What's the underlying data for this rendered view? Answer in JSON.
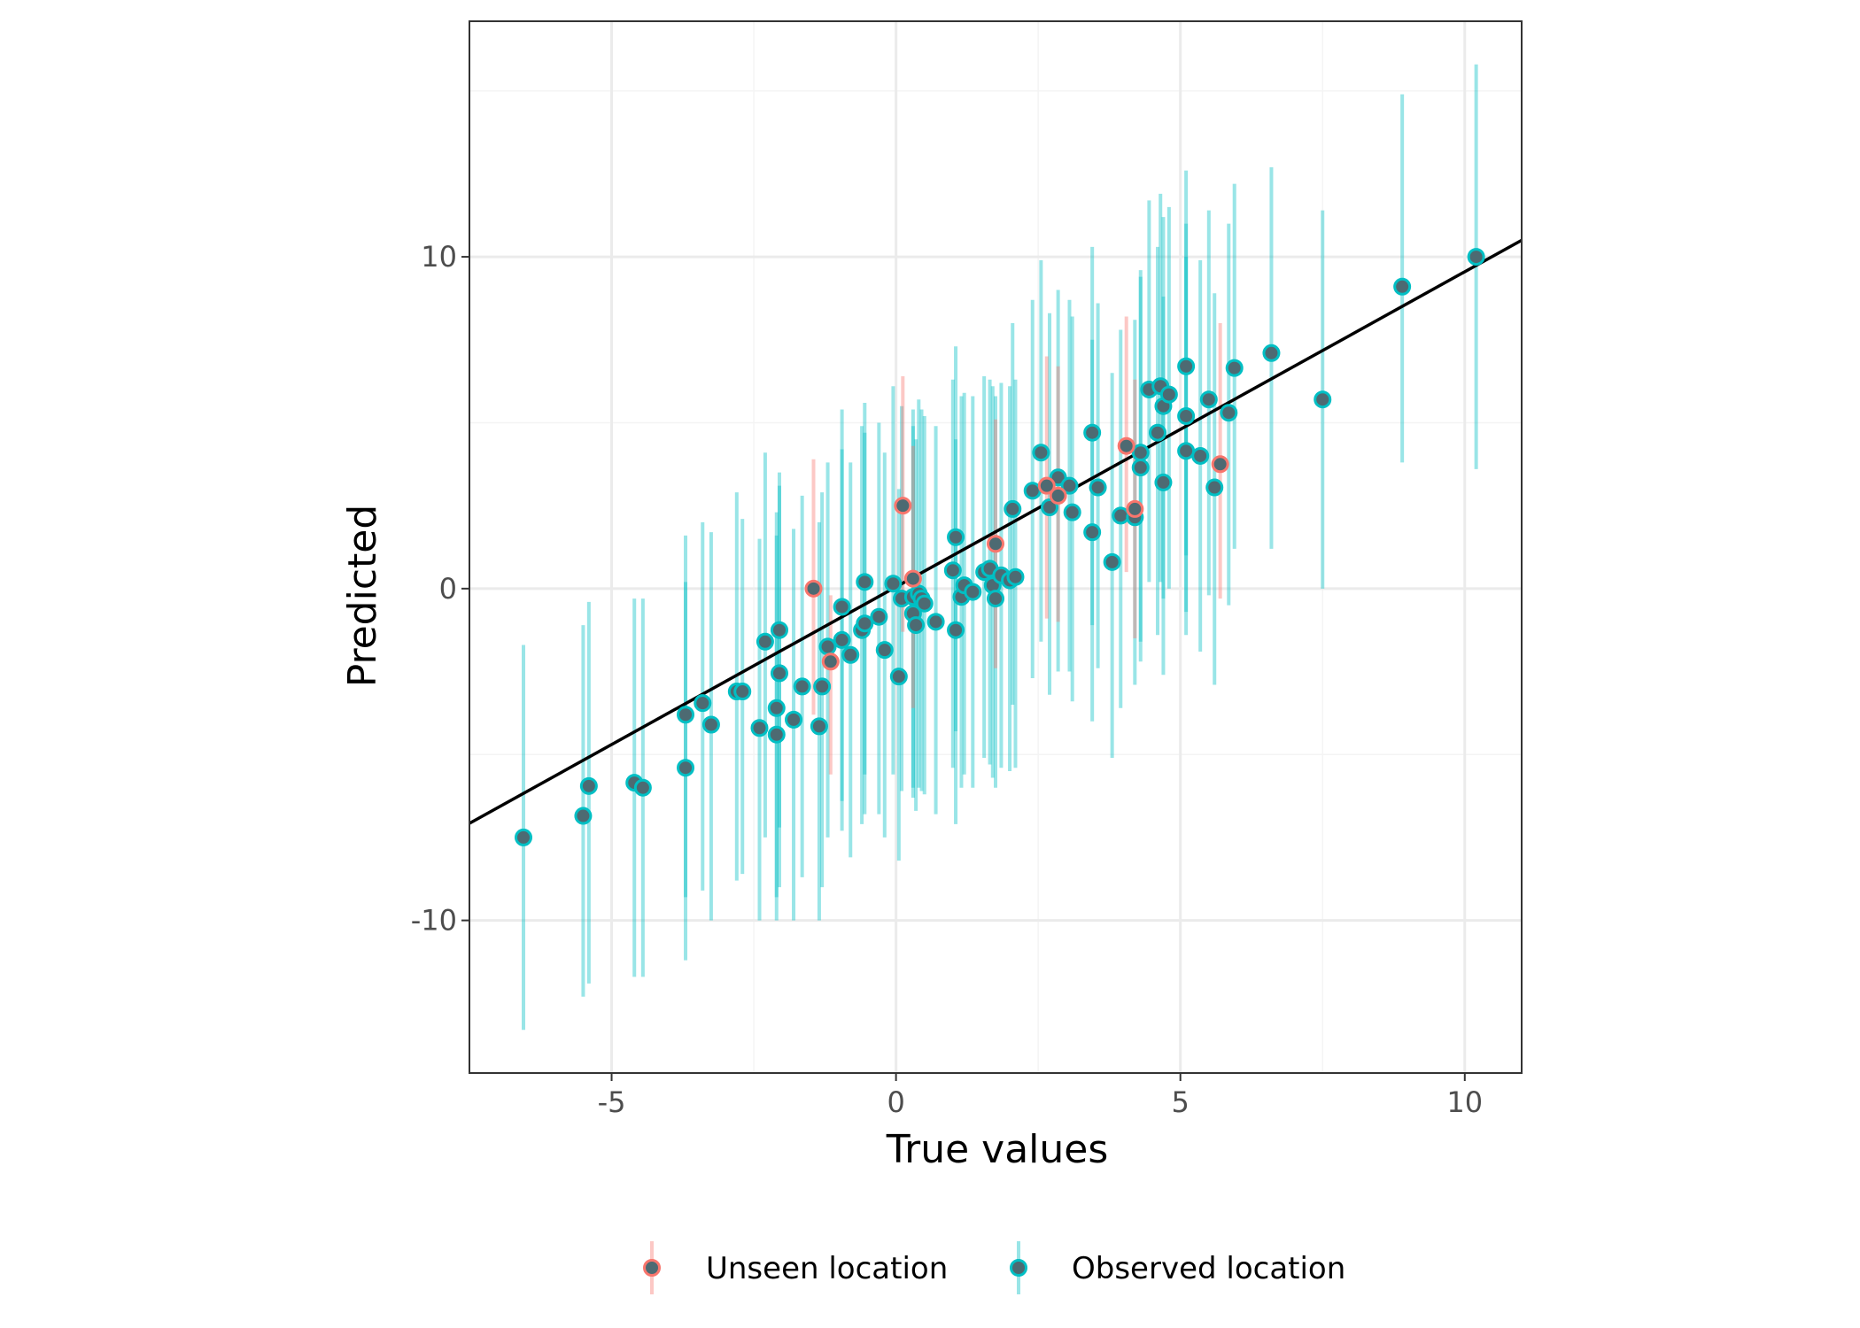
{
  "chart_data": {
    "type": "scatter",
    "title": "",
    "xlabel": "True values",
    "ylabel": "Predicted",
    "xlim": [
      -7.5,
      11
    ],
    "ylim": [
      -14.6,
      17.1
    ],
    "x_ticks": [
      -5,
      0,
      5,
      10
    ],
    "x_tick_labels": [
      "-5",
      "0",
      "5",
      "10"
    ],
    "y_ticks": [
      -10,
      0,
      10
    ],
    "y_tick_labels": [
      "-10",
      "0",
      "10"
    ],
    "grid": true,
    "legend": {
      "position": "bottom"
    },
    "colors": {
      "unseen": "#F8766D",
      "observed": "#00BFC4",
      "point_fill": "#4d6a72",
      "fit_line": "#000000",
      "grid_major": "#ebebeb",
      "grid_minor": "#f4f4f4",
      "panel_border": "#333333"
    },
    "fit_line": {
      "slope": 0.95,
      "intercept": 0.05
    },
    "series": [
      {
        "name": "Unseen location",
        "color": "#F8766D",
        "points": [
          {
            "x": -1.45,
            "y": 0.0,
            "lo": -3.8,
            "hi": 3.9
          },
          {
            "x": -1.15,
            "y": -2.2,
            "lo": -5.6,
            "hi": -0.2
          },
          {
            "x": 0.12,
            "y": 2.5,
            "lo": -1.3,
            "hi": 6.4
          },
          {
            "x": 0.3,
            "y": 0.3,
            "lo": -3.6,
            "hi": 4.3
          },
          {
            "x": 1.75,
            "y": 1.35,
            "lo": -2.4,
            "hi": 5.1
          },
          {
            "x": 2.65,
            "y": 3.1,
            "lo": -0.9,
            "hi": 7.0
          },
          {
            "x": 2.85,
            "y": 2.8,
            "lo": -1.0,
            "hi": 6.7
          },
          {
            "x": 4.05,
            "y": 4.3,
            "lo": 0.5,
            "hi": 8.2
          },
          {
            "x": 4.2,
            "y": 2.4,
            "lo": -1.5,
            "hi": 6.3
          },
          {
            "x": 5.7,
            "y": 3.75,
            "lo": -0.3,
            "hi": 8.0
          }
        ]
      },
      {
        "name": "Observed location",
        "color": "#00BFC4",
        "points": [
          {
            "x": -6.55,
            "y": -7.5,
            "lo": -13.3,
            "hi": -1.7
          },
          {
            "x": -5.5,
            "y": -6.85,
            "lo": -12.3,
            "hi": -1.1
          },
          {
            "x": -5.4,
            "y": -5.95,
            "lo": -11.9,
            "hi": -0.4
          },
          {
            "x": -4.6,
            "y": -5.85,
            "lo": -11.7,
            "hi": -0.3
          },
          {
            "x": -4.45,
            "y": -6.0,
            "lo": -11.7,
            "hi": -0.3
          },
          {
            "x": -3.7,
            "y": -5.4,
            "lo": -11.2,
            "hi": 0.2
          },
          {
            "x": -3.7,
            "y": -3.8,
            "lo": -9.3,
            "hi": 1.6
          },
          {
            "x": -3.4,
            "y": -3.45,
            "lo": -9.1,
            "hi": 2.0
          },
          {
            "x": -3.25,
            "y": -4.1,
            "lo": -10.0,
            "hi": 1.7
          },
          {
            "x": -2.8,
            "y": -3.1,
            "lo": -8.8,
            "hi": 2.9
          },
          {
            "x": -2.7,
            "y": -3.1,
            "lo": -8.6,
            "hi": 2.1
          },
          {
            "x": -2.4,
            "y": -4.2,
            "lo": -10.0,
            "hi": 1.5
          },
          {
            "x": -2.3,
            "y": -1.6,
            "lo": -7.5,
            "hi": 4.1
          },
          {
            "x": -2.1,
            "y": -3.6,
            "lo": -9.3,
            "hi": 2.3
          },
          {
            "x": -2.1,
            "y": -4.4,
            "lo": -10.0,
            "hi": 1.6
          },
          {
            "x": -2.05,
            "y": -1.25,
            "lo": -7.2,
            "hi": 3.1
          },
          {
            "x": -2.05,
            "y": -2.55,
            "lo": -9.0,
            "hi": 3.5
          },
          {
            "x": -1.8,
            "y": -3.95,
            "lo": -10.0,
            "hi": 1.8
          },
          {
            "x": -1.65,
            "y": -2.95,
            "lo": -8.7,
            "hi": 2.8
          },
          {
            "x": -1.35,
            "y": -4.15,
            "lo": -10.0,
            "hi": 2.0
          },
          {
            "x": -1.3,
            "y": -2.95,
            "lo": -9.0,
            "hi": 2.9
          },
          {
            "x": -1.2,
            "y": -1.75,
            "lo": -7.5,
            "hi": 3.8
          },
          {
            "x": -0.95,
            "y": -0.55,
            "lo": -6.4,
            "hi": 5.4
          },
          {
            "x": -0.95,
            "y": -1.55,
            "lo": -7.3,
            "hi": 4.2
          },
          {
            "x": -0.8,
            "y": -2.0,
            "lo": -8.1,
            "hi": 3.8
          },
          {
            "x": -0.6,
            "y": -1.25,
            "lo": -7.1,
            "hi": 4.9
          },
          {
            "x": -0.55,
            "y": -1.05,
            "lo": -6.8,
            "hi": 4.7
          },
          {
            "x": -0.55,
            "y": 0.2,
            "lo": -5.6,
            "hi": 5.6
          },
          {
            "x": -0.3,
            "y": -0.85,
            "lo": -6.8,
            "hi": 5.0
          },
          {
            "x": -0.2,
            "y": -1.85,
            "lo": -7.5,
            "hi": 4.1
          },
          {
            "x": -0.05,
            "y": 0.15,
            "lo": -5.6,
            "hi": 6.1
          },
          {
            "x": 0.05,
            "y": -2.65,
            "lo": -8.2,
            "hi": 3.0
          },
          {
            "x": 0.1,
            "y": -0.3,
            "lo": -6.1,
            "hi": 5.5
          },
          {
            "x": 0.3,
            "y": -0.75,
            "lo": -6.3,
            "hi": 4.9
          },
          {
            "x": 0.3,
            "y": -0.25,
            "lo": -6.0,
            "hi": 5.4
          },
          {
            "x": 0.35,
            "y": -1.1,
            "lo": -6.7,
            "hi": 4.5
          },
          {
            "x": 0.4,
            "y": -0.15,
            "lo": -6.0,
            "hi": 5.7
          },
          {
            "x": 0.45,
            "y": -0.3,
            "lo": -6.1,
            "hi": 5.4
          },
          {
            "x": 0.5,
            "y": -0.45,
            "lo": -6.2,
            "hi": 5.2
          },
          {
            "x": 0.7,
            "y": -1.0,
            "lo": -6.8,
            "hi": 4.9
          },
          {
            "x": 1.0,
            "y": 0.55,
            "lo": -5.4,
            "hi": 6.3
          },
          {
            "x": 1.05,
            "y": 1.55,
            "lo": -4.3,
            "hi": 7.3
          },
          {
            "x": 1.05,
            "y": -1.25,
            "lo": -7.1,
            "hi": 4.5
          },
          {
            "x": 1.15,
            "y": -0.25,
            "lo": -6.0,
            "hi": 5.8
          },
          {
            "x": 1.2,
            "y": 0.1,
            "lo": -5.6,
            "hi": 5.9
          },
          {
            "x": 1.35,
            "y": -0.1,
            "lo": -6.0,
            "hi": 5.8
          },
          {
            "x": 1.55,
            "y": 0.5,
            "lo": -5.1,
            "hi": 6.4
          },
          {
            "x": 1.65,
            "y": 0.6,
            "lo": -5.3,
            "hi": 6.3
          },
          {
            "x": 1.7,
            "y": 0.1,
            "lo": -5.7,
            "hi": 6.1
          },
          {
            "x": 1.75,
            "y": -0.3,
            "lo": -6.0,
            "hi": 5.8
          },
          {
            "x": 1.85,
            "y": 0.4,
            "lo": -5.4,
            "hi": 6.2
          },
          {
            "x": 2.0,
            "y": 0.25,
            "lo": -5.5,
            "hi": 6.1
          },
          {
            "x": 2.05,
            "y": 2.4,
            "lo": -3.5,
            "hi": 8.0
          },
          {
            "x": 2.1,
            "y": 0.35,
            "lo": -5.4,
            "hi": 6.3
          },
          {
            "x": 2.4,
            "y": 2.95,
            "lo": -2.7,
            "hi": 8.7
          },
          {
            "x": 2.55,
            "y": 4.1,
            "lo": -1.6,
            "hi": 9.9
          },
          {
            "x": 2.7,
            "y": 2.45,
            "lo": -3.2,
            "hi": 8.3
          },
          {
            "x": 2.85,
            "y": 3.35,
            "lo": -2.5,
            "hi": 9.0
          },
          {
            "x": 3.05,
            "y": 3.1,
            "lo": -2.5,
            "hi": 8.7
          },
          {
            "x": 3.1,
            "y": 2.3,
            "lo": -3.4,
            "hi": 8.2
          },
          {
            "x": 3.45,
            "y": 4.7,
            "lo": -1.1,
            "hi": 10.3
          },
          {
            "x": 3.45,
            "y": 1.7,
            "lo": -4.0,
            "hi": 7.5
          },
          {
            "x": 3.55,
            "y": 3.05,
            "lo": -2.4,
            "hi": 8.6
          },
          {
            "x": 3.8,
            "y": 0.8,
            "lo": -5.1,
            "hi": 6.5
          },
          {
            "x": 3.95,
            "y": 2.2,
            "lo": -3.6,
            "hi": 7.8
          },
          {
            "x": 4.2,
            "y": 2.15,
            "lo": -2.9,
            "hi": 8.1
          },
          {
            "x": 4.3,
            "y": 4.1,
            "lo": -1.6,
            "hi": 9.6
          },
          {
            "x": 4.3,
            "y": 3.65,
            "lo": -2.2,
            "hi": 9.4
          },
          {
            "x": 4.45,
            "y": 6.0,
            "lo": 0.2,
            "hi": 11.7
          },
          {
            "x": 4.6,
            "y": 4.7,
            "lo": -1.4,
            "hi": 10.3
          },
          {
            "x": 4.65,
            "y": 6.1,
            "lo": 0.2,
            "hi": 11.9
          },
          {
            "x": 4.7,
            "y": 5.5,
            "lo": -0.3,
            "hi": 11.2
          },
          {
            "x": 4.7,
            "y": 3.2,
            "lo": -2.6,
            "hi": 8.8
          },
          {
            "x": 4.8,
            "y": 5.85,
            "lo": 0.0,
            "hi": 11.5
          },
          {
            "x": 5.1,
            "y": 6.7,
            "lo": 1.0,
            "hi": 12.6
          },
          {
            "x": 5.1,
            "y": 5.2,
            "lo": -0.7,
            "hi": 11.0
          },
          {
            "x": 5.1,
            "y": 4.15,
            "lo": -1.4,
            "hi": 10.0
          },
          {
            "x": 5.35,
            "y": 4.0,
            "lo": -1.9,
            "hi": 9.9
          },
          {
            "x": 5.5,
            "y": 5.7,
            "lo": -0.2,
            "hi": 11.4
          },
          {
            "x": 5.6,
            "y": 3.05,
            "lo": -2.9,
            "hi": 8.9
          },
          {
            "x": 5.85,
            "y": 5.3,
            "lo": -0.5,
            "hi": 11.0
          },
          {
            "x": 5.95,
            "y": 6.65,
            "lo": 1.2,
            "hi": 12.2
          },
          {
            "x": 6.6,
            "y": 7.1,
            "lo": 1.2,
            "hi": 12.7
          },
          {
            "x": 7.5,
            "y": 5.7,
            "lo": 0.0,
            "hi": 11.4
          },
          {
            "x": 8.9,
            "y": 9.1,
            "lo": 3.8,
            "hi": 14.9
          },
          {
            "x": 10.2,
            "y": 10.0,
            "lo": 3.6,
            "hi": 15.8
          }
        ]
      }
    ]
  }
}
